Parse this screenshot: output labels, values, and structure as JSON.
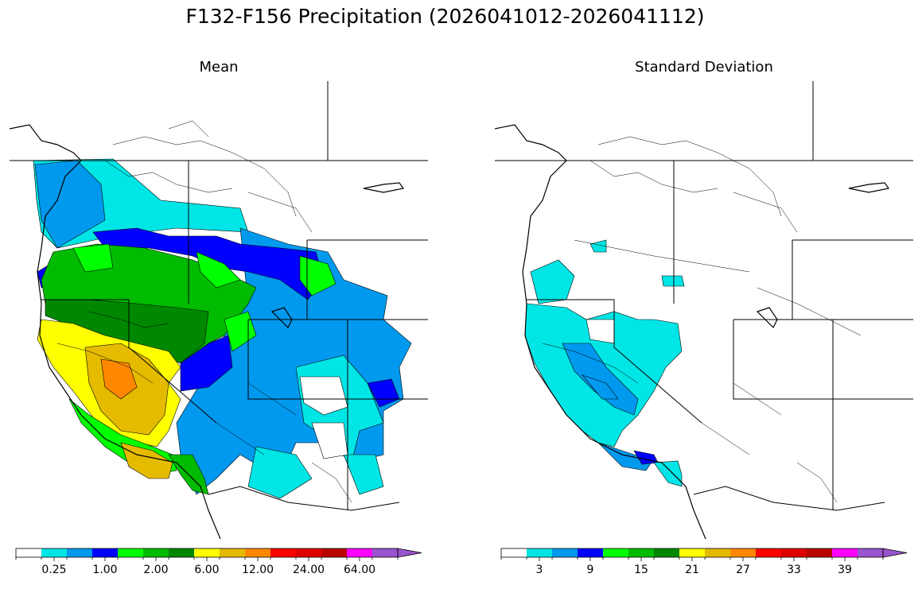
{
  "title": "F132-F156 Precipitation (2026041012-2026041112)",
  "panels": [
    {
      "title": "Mean",
      "colorbar": {
        "colors": [
          "#ffffff",
          "#00e5e5",
          "#0099ee",
          "#0000ff",
          "#00ff00",
          "#00bb00",
          "#008800",
          "#ffff00",
          "#e5bb00",
          "#ff8800",
          "#ff0000",
          "#dd0000",
          "#bb0000",
          "#ff00ff",
          "#9955cc"
        ],
        "labels": [
          "0.25",
          "1.00",
          "2.00",
          "6.00",
          "12.00",
          "24.00",
          "64.00"
        ],
        "extend": "max"
      }
    },
    {
      "title": "Standard Deviation",
      "colorbar": {
        "colors": [
          "#ffffff",
          "#00e5e5",
          "#0099ee",
          "#0000ff",
          "#00ff00",
          "#00bb00",
          "#008800",
          "#ffff00",
          "#e5bb00",
          "#ff8800",
          "#ff0000",
          "#dd0000",
          "#bb0000",
          "#ff00ff",
          "#9955cc"
        ],
        "labels": [
          "3",
          "9",
          "15",
          "21",
          "27",
          "33",
          "39"
        ],
        "extend": "max"
      }
    }
  ]
}
